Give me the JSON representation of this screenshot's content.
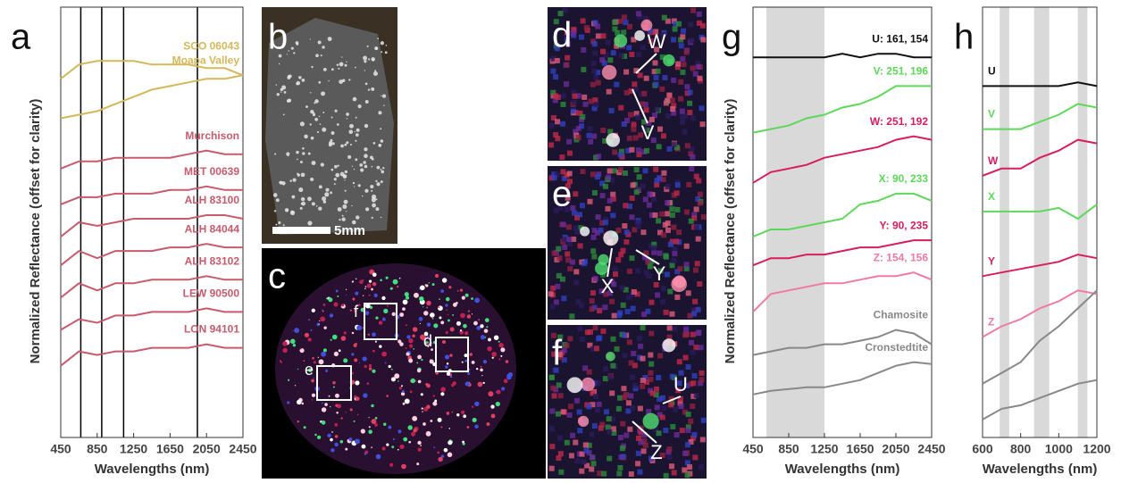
{
  "chart_data": [
    {
      "type": "line",
      "label": "a",
      "ylabel": "Normalized Reflectance (offset for clarity)",
      "xlabel": "Wavelengths (nm)",
      "x": [
        450,
        650,
        850,
        1050,
        1250,
        1450,
        1650,
        1850,
        2050,
        2250,
        2450
      ],
      "xlim": [
        450,
        2450
      ],
      "xticks": [
        450,
        850,
        1250,
        1650,
        2050,
        2450
      ],
      "ylim": [
        0,
        12
      ],
      "vlines": [
        670,
        900,
        1140,
        1950
      ],
      "series": [
        {
          "name": "SCO 06043",
          "color": "#d4b85a",
          "values": [
            10.0,
            10.4,
            10.5,
            10.5,
            10.5,
            10.4,
            10.4,
            10.4,
            10.3,
            10.3,
            10.1
          ]
        },
        {
          "name": "Moapa Valley",
          "color": "#d4b85a",
          "values": [
            8.9,
            9.0,
            9.1,
            9.3,
            9.5,
            9.7,
            9.8,
            9.9,
            10.0,
            10.0,
            10.1
          ]
        },
        {
          "name": "Murchison",
          "color": "#c85a6c",
          "values": [
            7.5,
            7.7,
            7.7,
            7.8,
            7.8,
            7.8,
            7.8,
            7.9,
            8.0,
            7.9,
            7.9
          ]
        },
        {
          "name": "MET 00639",
          "color": "#c85a6c",
          "values": [
            6.5,
            6.7,
            6.7,
            6.8,
            6.8,
            6.8,
            6.9,
            6.9,
            7.0,
            6.9,
            6.9
          ]
        },
        {
          "name": "ALH 83100",
          "color": "#c85a6c",
          "values": [
            5.6,
            6.0,
            5.9,
            6.0,
            6.1,
            6.1,
            6.1,
            6.1,
            6.2,
            6.2,
            6.1
          ]
        },
        {
          "name": "ALH 84044",
          "color": "#c85a6c",
          "values": [
            4.8,
            5.2,
            5.0,
            5.2,
            5.2,
            5.2,
            5.3,
            5.3,
            5.4,
            5.3,
            5.3
          ]
        },
        {
          "name": "ALH 83102",
          "color": "#c85a6c",
          "values": [
            3.9,
            4.3,
            4.1,
            4.3,
            4.3,
            4.4,
            4.4,
            4.4,
            4.5,
            4.4,
            4.4
          ]
        },
        {
          "name": "LEW 90500",
          "color": "#c85a6c",
          "values": [
            3.0,
            3.3,
            3.2,
            3.4,
            3.4,
            3.5,
            3.5,
            3.5,
            3.6,
            3.5,
            3.5
          ]
        },
        {
          "name": "LON 94101",
          "color": "#c85a6c",
          "values": [
            2.0,
            2.4,
            2.3,
            2.4,
            2.4,
            2.5,
            2.5,
            2.5,
            2.6,
            2.5,
            2.5
          ]
        }
      ]
    },
    {
      "type": "line",
      "label": "g",
      "ylabel": "Normalized Reflectance (offset for clarity)",
      "xlabel": "Wavelengths (nm)",
      "x": [
        450,
        650,
        850,
        1050,
        1250,
        1450,
        1650,
        1850,
        2050,
        2250,
        2450
      ],
      "xlim": [
        450,
        2450
      ],
      "xticks": [
        450,
        850,
        1250,
        1650,
        2050,
        2450
      ],
      "ylim": [
        0,
        12
      ],
      "shaded": [
        [
          600,
          1250
        ]
      ],
      "series": [
        {
          "name": "U: 161, 154",
          "color": "#111111",
          "values": [
            10.6,
            10.6,
            10.6,
            10.6,
            10.6,
            10.7,
            10.6,
            10.7,
            10.7,
            10.6,
            10.6
          ]
        },
        {
          "name": "V: 251, 196",
          "color": "#5ed85a",
          "values": [
            8.5,
            8.6,
            8.7,
            8.9,
            9.0,
            9.2,
            9.3,
            9.5,
            9.8,
            9.8,
            9.8
          ]
        },
        {
          "name": "W: 251, 192",
          "color": "#d81e5b",
          "values": [
            7.1,
            7.4,
            7.5,
            7.6,
            7.8,
            7.9,
            8.0,
            8.1,
            8.3,
            8.4,
            8.3
          ]
        },
        {
          "name": "X: 90, 233",
          "color": "#5ed85a",
          "values": [
            5.6,
            5.8,
            5.8,
            5.9,
            6.0,
            6.1,
            6.5,
            6.6,
            6.8,
            6.8,
            6.6
          ]
        },
        {
          "name": "Y: 90, 235",
          "color": "#d81e5b",
          "values": [
            4.8,
            5.0,
            5.0,
            5.1,
            5.1,
            5.2,
            5.3,
            5.3,
            5.4,
            5.5,
            5.5
          ]
        },
        {
          "name": "Z: 154, 156",
          "color": "#f07ba0",
          "values": [
            3.5,
            4.0,
            4.1,
            4.2,
            4.3,
            4.3,
            4.4,
            4.5,
            4.5,
            4.6,
            4.4
          ]
        },
        {
          "name": "Chamosite",
          "color": "#888888",
          "values": [
            2.3,
            2.4,
            2.5,
            2.5,
            2.6,
            2.6,
            2.7,
            2.8,
            3.0,
            2.9,
            2.6
          ]
        },
        {
          "name": "Cronstedtite",
          "color": "#888888",
          "values": [
            1.2,
            1.3,
            1.35,
            1.4,
            1.4,
            1.5,
            1.6,
            1.8,
            2.0,
            2.1,
            2.05
          ]
        }
      ]
    },
    {
      "type": "line",
      "label": "h",
      "xlabel": "Wavelengths (nm)",
      "x": [
        600,
        700,
        800,
        900,
        1000,
        1100,
        1200
      ],
      "xlim": [
        600,
        1200
      ],
      "xticks": [
        600,
        800,
        1000,
        1200
      ],
      "ylim": [
        0,
        12
      ],
      "shaded": [
        [
          690,
          740
        ],
        [
          870,
          950
        ],
        [
          1100,
          1150
        ]
      ],
      "series": [
        {
          "name": "U",
          "color": "#111111",
          "values": [
            9.8,
            9.8,
            9.8,
            9.8,
            9.8,
            9.9,
            9.8
          ]
        },
        {
          "name": "V",
          "color": "#5ed85a",
          "values": [
            8.6,
            8.6,
            8.6,
            8.8,
            9.0,
            9.3,
            9.2
          ]
        },
        {
          "name": "W",
          "color": "#d81e5b",
          "values": [
            7.3,
            7.5,
            7.5,
            7.8,
            8.0,
            8.3,
            8.2
          ]
        },
        {
          "name": "X",
          "color": "#5ed85a",
          "values": [
            6.3,
            6.3,
            6.3,
            6.3,
            6.4,
            6.1,
            6.5
          ]
        },
        {
          "name": "Y",
          "color": "#d81e5b",
          "values": [
            4.5,
            4.6,
            4.7,
            4.8,
            4.9,
            5.1,
            5.0
          ]
        },
        {
          "name": "Z",
          "color": "#f07ba0",
          "values": [
            2.8,
            3.1,
            3.3,
            3.6,
            3.8,
            4.1,
            4.0
          ]
        },
        {
          "name": null,
          "color": "#888888",
          "values": [
            1.5,
            1.8,
            2.1,
            2.7,
            3.1,
            3.6,
            4.1
          ]
        },
        {
          "name": null,
          "color": "#888888",
          "values": [
            0.5,
            0.8,
            0.9,
            1.1,
            1.3,
            1.5,
            1.6
          ]
        }
      ]
    }
  ],
  "panels": [
    {
      "label": "b",
      "scale_bar": "5mm"
    },
    {
      "label": "c",
      "boxes": [
        "f",
        "d",
        "e"
      ]
    },
    {
      "label": "d",
      "markers": [
        "W",
        "V"
      ]
    },
    {
      "label": "e",
      "markers": [
        "X",
        "Y"
      ]
    },
    {
      "label": "f",
      "markers": [
        "U",
        "Z"
      ]
    }
  ]
}
